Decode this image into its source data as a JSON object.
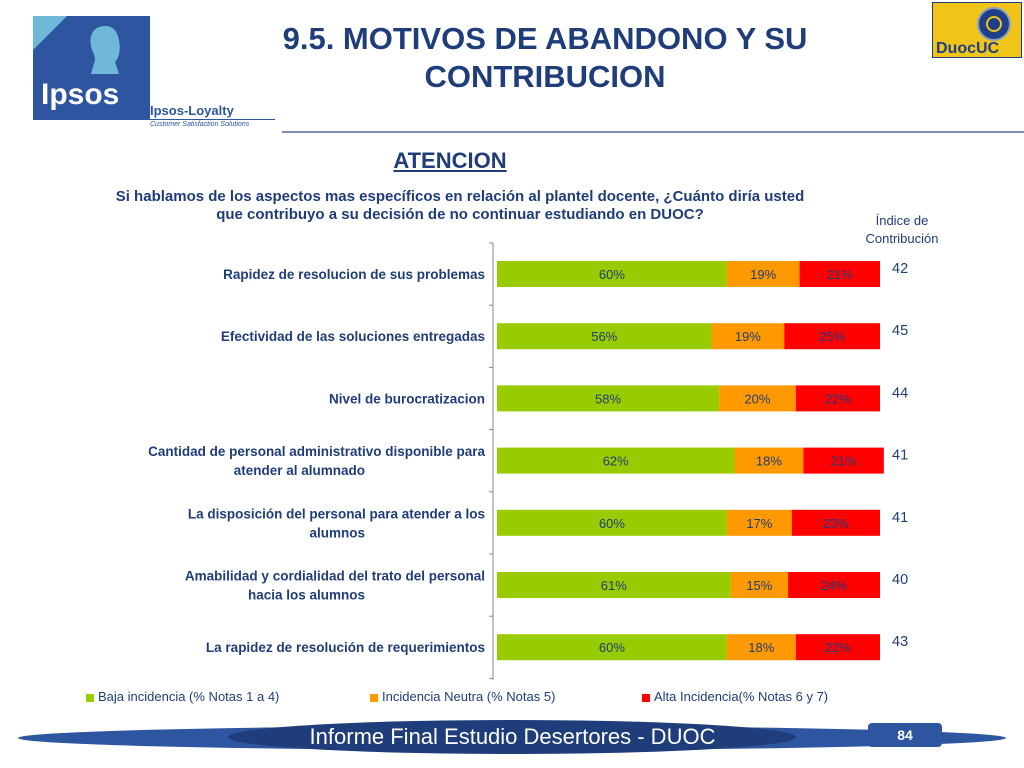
{
  "header": {
    "title_line1": "9.5. MOTIVOS DE ABANDONO Y SU",
    "title_line2": "CONTRIBUCION",
    "ipsos_logo": "Ipsos",
    "loyalty_name": "Ipsos-Loyalty",
    "loyalty_tagline": "Customer Satisfaction Solutions",
    "duoc_logo": "DuocUC"
  },
  "subtitle": "ATENCION",
  "question_line1": "Si hablamos de los aspectos mas específicos en relación al plantel docente, ¿Cuánto diría usted",
  "question_line2": "que contribuyo a su decisión de no continuar estudiando en DUOC?",
  "index_header_line1": "Índice de",
  "index_header_line2": "Contribución",
  "chart_data": {
    "type": "bar",
    "orientation": "horizontal",
    "stacked": "100%",
    "categories": [
      "Rapidez de resolucion de sus problemas",
      "Efectividad de las soluciones entregadas",
      "Nivel de burocratizacion",
      "Cantidad de personal administrativo disponible para atender al alumnado",
      "La disposición del personal para atender a los alumnos",
      "Amabilidad y cordialidad del trato del personal hacia los alumnos",
      "La rapidez de resolución de requerimientos"
    ],
    "series": [
      {
        "name": "Baja incidencia (% Notas 1 a 4)",
        "color": "#99cc00",
        "values": [
          60,
          56,
          58,
          62,
          60,
          61,
          60
        ]
      },
      {
        "name": "Incidencia Neutra (% Notas 5)",
        "color": "#ff9900",
        "values": [
          19,
          19,
          20,
          18,
          17,
          15,
          18
        ]
      },
      {
        "name": "Alta Incidencia(% Notas 6 y 7)",
        "color": "#ff0000",
        "values": [
          21,
          25,
          22,
          21,
          23,
          24,
          22
        ]
      }
    ],
    "contribution_index": [
      42,
      45,
      44,
      41,
      41,
      40,
      43
    ],
    "legend_position": "bottom",
    "text_color": "#1f3d7a"
  },
  "footer": {
    "text": "Informe Final Estudio Desertores - DUOC",
    "page": "84"
  }
}
